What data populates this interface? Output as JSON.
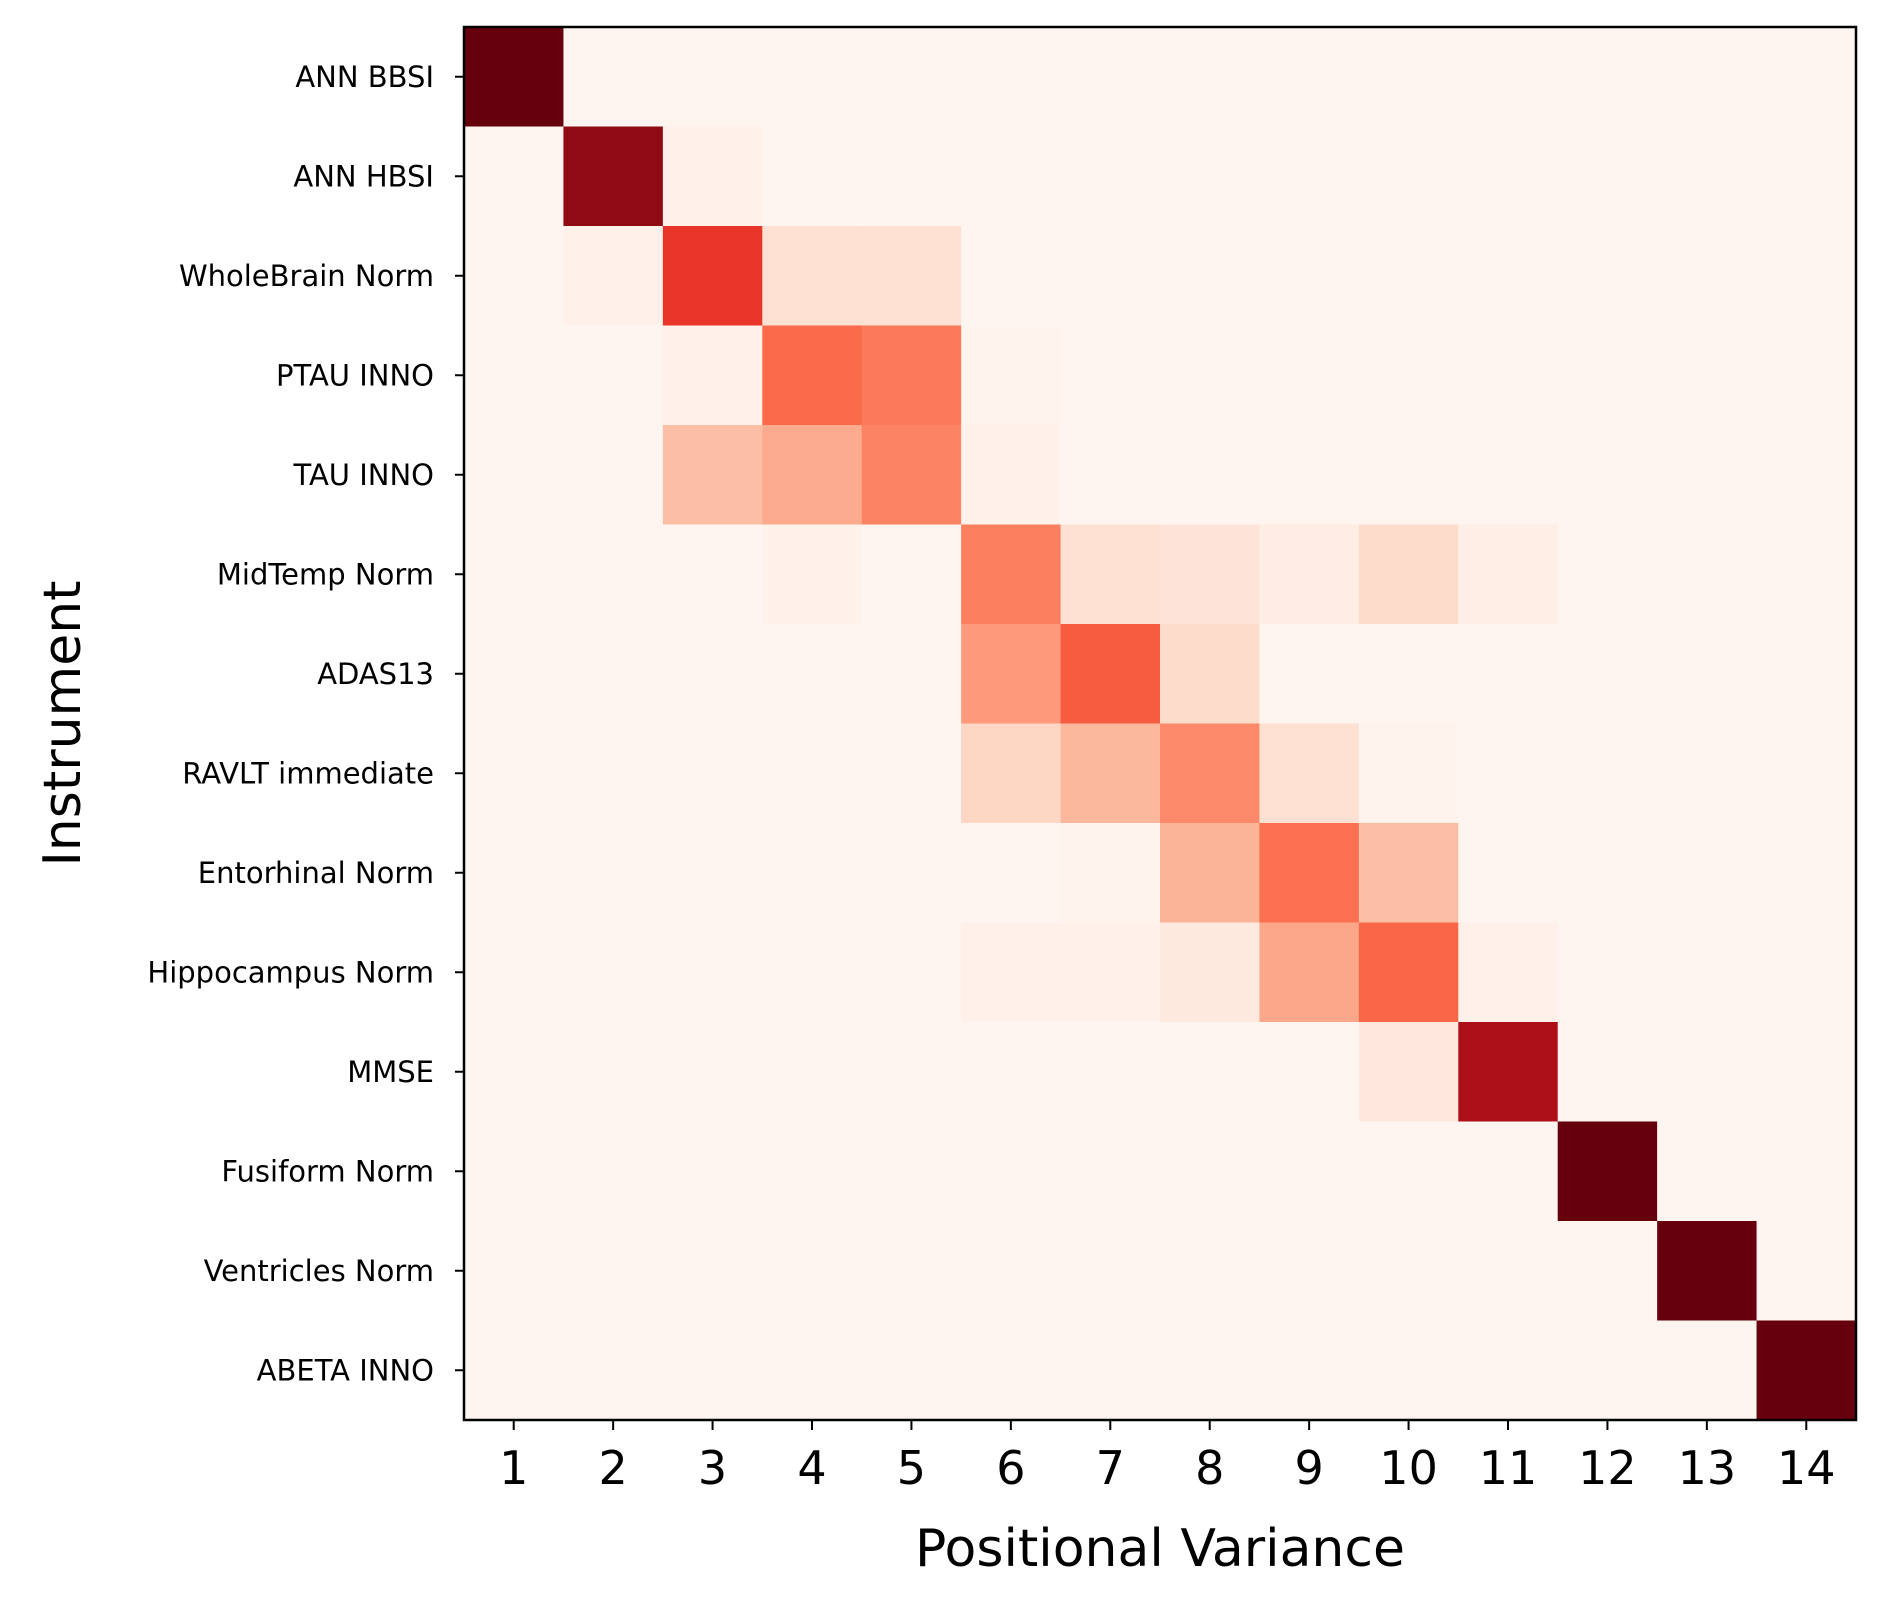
{
  "chart_data": {
    "type": "heatmap",
    "title": "",
    "xlabel": "Positional Variance",
    "ylabel": "Instrument",
    "x_categories": [
      "1",
      "2",
      "3",
      "4",
      "5",
      "6",
      "7",
      "8",
      "9",
      "10",
      "11",
      "12",
      "13",
      "14"
    ],
    "y_categories": [
      "ANN BBSI",
      "ANN HBSI",
      "WholeBrain Norm",
      "PTAU INNO",
      "TAU INNO",
      "MidTemp Norm",
      "ADAS13",
      "RAVLT immediate",
      "Entorhinal Norm",
      "Hippocampus Norm",
      "MMSE",
      "Fusiform Norm",
      "Ventricles Norm",
      "ABETA INNO"
    ],
    "colormap": "Reds",
    "vmin": 0,
    "vmax": 1,
    "grid": false,
    "legend": "none",
    "values": [
      [
        1.0,
        0,
        0,
        0,
        0,
        0,
        0,
        0,
        0,
        0,
        0,
        0,
        0,
        0
      ],
      [
        0,
        0.92,
        0.03,
        0,
        0,
        0,
        0,
        0,
        0,
        0,
        0,
        0,
        0,
        0
      ],
      [
        0,
        0.03,
        0.65,
        0.12,
        0.12,
        0,
        0,
        0,
        0,
        0,
        0,
        0,
        0,
        0
      ],
      [
        0,
        0,
        0.03,
        0.5,
        0.45,
        0.01,
        0,
        0,
        0,
        0,
        0,
        0,
        0,
        0
      ],
      [
        0,
        0,
        0.24,
        0.3,
        0.42,
        0.02,
        0,
        0,
        0,
        0,
        0,
        0,
        0,
        0
      ],
      [
        0,
        0,
        0,
        0.02,
        0,
        0.43,
        0.12,
        0.1,
        0.05,
        0.14,
        0.04,
        0,
        0,
        0
      ],
      [
        0,
        0,
        0,
        0,
        0,
        0.35,
        0.54,
        0.14,
        0,
        0,
        0,
        0,
        0,
        0
      ],
      [
        0,
        0,
        0,
        0,
        0,
        0.16,
        0.26,
        0.4,
        0.12,
        0.01,
        0,
        0,
        0,
        0
      ],
      [
        0,
        0,
        0,
        0,
        0,
        0,
        0.01,
        0.27,
        0.48,
        0.24,
        0,
        0,
        0,
        0
      ],
      [
        0,
        0,
        0,
        0,
        0,
        0.03,
        0.03,
        0.07,
        0.31,
        0.51,
        0.03,
        0,
        0,
        0
      ],
      [
        0,
        0,
        0,
        0,
        0,
        0,
        0,
        0,
        0,
        0.08,
        0.85,
        0,
        0,
        0
      ],
      [
        0,
        0,
        0,
        0,
        0,
        0,
        0,
        0,
        0,
        0,
        0,
        1.0,
        0,
        0
      ],
      [
        0,
        0,
        0,
        0,
        0,
        0,
        0,
        0,
        0,
        0,
        0,
        0,
        1.0,
        0
      ],
      [
        0,
        0,
        0,
        0,
        0,
        0,
        0,
        0,
        0,
        0,
        0,
        0,
        0,
        1.0
      ]
    ]
  }
}
